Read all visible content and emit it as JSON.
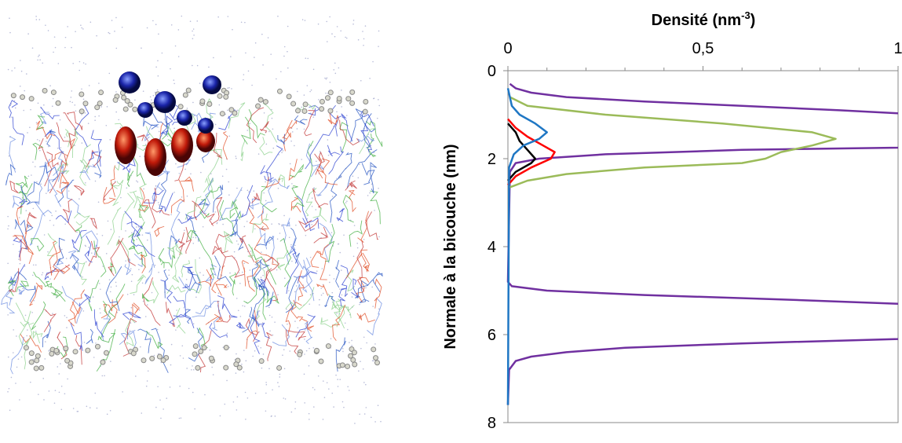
{
  "chart_data": {
    "type": "line",
    "xlabel": [
      "Densité (nm",
      "-3",
      ")"
    ],
    "ylabel": "Normale à la bicouche (nm)",
    "xlim": [
      0,
      1
    ],
    "xticks": [
      0,
      {
        "value": 0.5,
        "label": "0,5"
      },
      1
    ],
    "xminorticks": [
      0.1,
      0.2,
      0.3,
      0.4,
      0.6,
      0.7,
      0.8,
      0.9
    ],
    "ylim": [
      0,
      8
    ],
    "yticks": [
      0,
      2,
      4,
      6,
      8
    ],
    "yreversed": true,
    "series": [
      {
        "color": "#7030a0",
        "y": [
          0.3,
          0.4,
          0.5,
          0.6,
          0.7,
          0.8,
          0.9,
          0.97,
          1.1,
          1.4,
          1.65,
          1.75,
          1.8,
          1.9,
          2.0,
          2.1,
          2.3,
          4.8,
          4.9,
          5.0,
          5.1,
          5.2,
          5.3,
          5.6,
          5.9,
          6.1,
          6.2,
          6.3,
          6.4,
          6.5,
          6.6,
          6.8,
          7.6
        ],
        "values": [
          0.005,
          0.02,
          0.06,
          0.15,
          0.35,
          0.6,
          0.85,
          1.0,
          1.3,
          1.5,
          1.2,
          1.0,
          0.6,
          0.25,
          0.08,
          0.02,
          0.005,
          0,
          0.01,
          0.1,
          0.35,
          0.7,
          1.0,
          1.4,
          1.3,
          1.0,
          0.6,
          0.3,
          0.15,
          0.06,
          0.02,
          0.003,
          0
        ]
      },
      {
        "color": "#9bbb59",
        "y": [
          0.6,
          0.8,
          1.0,
          1.2,
          1.4,
          1.55,
          1.7,
          1.85,
          2.0,
          2.1,
          2.2,
          2.35,
          2.5,
          2.65
        ],
        "values": [
          0.005,
          0.05,
          0.25,
          0.55,
          0.78,
          0.84,
          0.78,
          0.7,
          0.66,
          0.6,
          0.35,
          0.15,
          0.05,
          0.005
        ]
      },
      {
        "color": "#ff0000",
        "y": [
          1.1,
          1.3,
          1.5,
          1.7,
          1.85,
          2.0,
          2.2,
          2.4,
          2.6
        ],
        "values": [
          0,
          0.02,
          0.05,
          0.09,
          0.12,
          0.11,
          0.06,
          0.02,
          0
        ]
      },
      {
        "color": "#000000",
        "y": [
          1.2,
          1.4,
          1.6,
          1.8,
          2.0,
          2.1,
          2.3,
          2.5
        ],
        "values": [
          0,
          0.02,
          0.03,
          0.05,
          0.07,
          0.06,
          0.02,
          0
        ]
      },
      {
        "color": "#1f77c4",
        "y": [
          0.4,
          0.8,
          1.0,
          1.2,
          1.4,
          1.55,
          1.7,
          1.9,
          2.2,
          7.6
        ],
        "values": [
          0,
          0.01,
          0.03,
          0.07,
          0.1,
          0.08,
          0.04,
          0.015,
          0.003,
          0
        ]
      }
    ]
  }
}
